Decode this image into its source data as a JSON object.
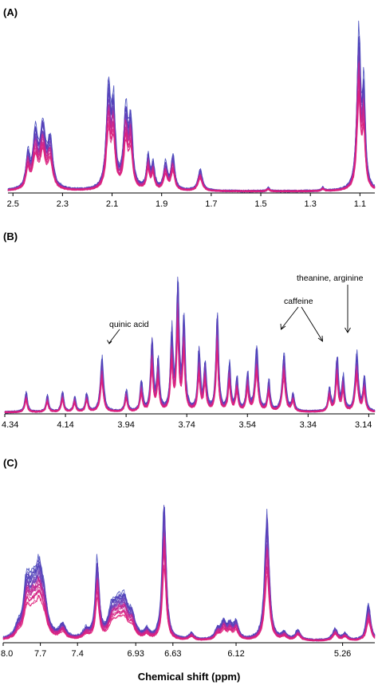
{
  "chart_data": [
    {
      "type": "line",
      "panel": "(A)",
      "xlabel": "",
      "x_reversed": true,
      "xlim": [
        2.52,
        1.04
      ],
      "x_ticks": [
        2.5,
        2.3,
        2.1,
        1.9,
        1.7,
        1.5,
        1.3,
        1.1
      ],
      "x_tick_labels": [
        "2.5",
        "2.3",
        "2.1",
        "1.9",
        "1.7",
        "1.5",
        "1.3",
        "1.1"
      ],
      "n_spectra": 24,
      "colors": [
        "#3a3fb8",
        "#e0207a"
      ],
      "peaks": [
        {
          "ppm": 2.44,
          "height": 0.2,
          "width": 0.006
        },
        {
          "ppm": 2.41,
          "height": 0.32,
          "width": 0.008
        },
        {
          "ppm": 2.38,
          "height": 0.36,
          "width": 0.009
        },
        {
          "ppm": 2.35,
          "height": 0.28,
          "width": 0.008
        },
        {
          "ppm": 2.115,
          "height": 0.58,
          "width": 0.007
        },
        {
          "ppm": 2.095,
          "height": 0.46,
          "width": 0.006
        },
        {
          "ppm": 2.045,
          "height": 0.46,
          "width": 0.007
        },
        {
          "ppm": 2.025,
          "height": 0.38,
          "width": 0.006
        },
        {
          "ppm": 1.955,
          "height": 0.2,
          "width": 0.005
        },
        {
          "ppm": 1.935,
          "height": 0.15,
          "width": 0.005
        },
        {
          "ppm": 1.885,
          "height": 0.16,
          "width": 0.006
        },
        {
          "ppm": 1.855,
          "height": 0.2,
          "width": 0.006
        },
        {
          "ppm": 1.745,
          "height": 0.13,
          "width": 0.007
        },
        {
          "ppm": 1.47,
          "height": 0.02,
          "width": 0.004
        },
        {
          "ppm": 1.25,
          "height": 0.02,
          "width": 0.004
        },
        {
          "ppm": 1.105,
          "height": 0.92,
          "width": 0.006
        },
        {
          "ppm": 1.085,
          "height": 0.55,
          "width": 0.005
        }
      ],
      "annotations": []
    },
    {
      "type": "line",
      "panel": "(B)",
      "xlabel": "",
      "x_reversed": true,
      "xlim": [
        4.34,
        3.12
      ],
      "x_ticks": [
        4.34,
        4.14,
        3.94,
        3.74,
        3.54,
        3.34,
        3.14
      ],
      "x_tick_labels": [
        "4.34",
        "4.14",
        "3.94",
        "3.74",
        "3.54",
        "3.34",
        "3.14"
      ],
      "n_spectra": 24,
      "colors": [
        "#3a3fb8",
        "#e0207a"
      ],
      "peaks": [
        {
          "ppm": 4.27,
          "height": 0.12,
          "width": 0.004
        },
        {
          "ppm": 4.2,
          "height": 0.1,
          "width": 0.004
        },
        {
          "ppm": 4.15,
          "height": 0.12,
          "width": 0.004
        },
        {
          "ppm": 4.11,
          "height": 0.09,
          "width": 0.004
        },
        {
          "ppm": 4.07,
          "height": 0.11,
          "width": 0.004
        },
        {
          "ppm": 4.02,
          "height": 0.32,
          "width": 0.005
        },
        {
          "ppm": 3.94,
          "height": 0.13,
          "width": 0.004
        },
        {
          "ppm": 3.89,
          "height": 0.18,
          "width": 0.004
        },
        {
          "ppm": 3.855,
          "height": 0.42,
          "width": 0.004
        },
        {
          "ppm": 3.835,
          "height": 0.3,
          "width": 0.004
        },
        {
          "ppm": 3.79,
          "height": 0.45,
          "width": 0.004
        },
        {
          "ppm": 3.77,
          "height": 0.75,
          "width": 0.004
        },
        {
          "ppm": 3.75,
          "height": 0.55,
          "width": 0.004
        },
        {
          "ppm": 3.7,
          "height": 0.35,
          "width": 0.004
        },
        {
          "ppm": 3.68,
          "height": 0.28,
          "width": 0.004
        },
        {
          "ppm": 3.64,
          "height": 0.58,
          "width": 0.004
        },
        {
          "ppm": 3.6,
          "height": 0.28,
          "width": 0.004
        },
        {
          "ppm": 3.575,
          "height": 0.2,
          "width": 0.004
        },
        {
          "ppm": 3.54,
          "height": 0.22,
          "width": 0.004
        },
        {
          "ppm": 3.51,
          "height": 0.38,
          "width": 0.005
        },
        {
          "ppm": 3.47,
          "height": 0.18,
          "width": 0.004
        },
        {
          "ppm": 3.42,
          "height": 0.35,
          "width": 0.005
        },
        {
          "ppm": 3.39,
          "height": 0.1,
          "width": 0.004
        },
        {
          "ppm": 3.27,
          "height": 0.14,
          "width": 0.004
        },
        {
          "ppm": 3.245,
          "height": 0.33,
          "width": 0.004
        },
        {
          "ppm": 3.225,
          "height": 0.2,
          "width": 0.004
        },
        {
          "ppm": 3.18,
          "height": 0.34,
          "width": 0.005
        },
        {
          "ppm": 3.155,
          "height": 0.2,
          "width": 0.004
        }
      ],
      "annotations": [
        {
          "text": "quinic acid",
          "ppm": 4.02
        },
        {
          "text": "caffeine",
          "ppm": [
            3.42,
            3.245
          ]
        },
        {
          "text": "theanine, arginine",
          "ppm": 3.18
        }
      ]
    },
    {
      "type": "line",
      "panel": "(C)",
      "xlabel": "Chemical shift (ppm)",
      "x_reversed": true,
      "xlim": [
        8.0,
        5.0
      ],
      "x_ticks": [
        8.0,
        7.7,
        7.4,
        6.93,
        6.63,
        6.12,
        5.26
      ],
      "x_tick_labels": [
        "8.0",
        "7.7",
        "7.4",
        "6.93",
        "6.63",
        "6.12",
        "5.26"
      ],
      "n_spectra": 24,
      "colors": [
        "#3a3fb8",
        "#e0207a"
      ],
      "peaks": [
        {
          "ppm": 7.88,
          "height": 0.05,
          "width": 0.008
        },
        {
          "ppm": 7.81,
          "height": 0.3,
          "width": 0.01
        },
        {
          "ppm": 7.76,
          "height": 0.22,
          "width": 0.012
        },
        {
          "ppm": 7.71,
          "height": 0.34,
          "width": 0.012
        },
        {
          "ppm": 7.67,
          "height": 0.16,
          "width": 0.01
        },
        {
          "ppm": 7.52,
          "height": 0.08,
          "width": 0.01
        },
        {
          "ppm": 7.33,
          "height": 0.05,
          "width": 0.01
        },
        {
          "ppm": 7.24,
          "height": 0.46,
          "width": 0.006
        },
        {
          "ppm": 7.12,
          "height": 0.16,
          "width": 0.012
        },
        {
          "ppm": 7.07,
          "height": 0.15,
          "width": 0.012
        },
        {
          "ppm": 7.02,
          "height": 0.19,
          "width": 0.012
        },
        {
          "ppm": 6.96,
          "height": 0.12,
          "width": 0.01
        },
        {
          "ppm": 6.84,
          "height": 0.05,
          "width": 0.008
        },
        {
          "ppm": 6.7,
          "height": 0.84,
          "width": 0.006
        },
        {
          "ppm": 6.48,
          "height": 0.04,
          "width": 0.008
        },
        {
          "ppm": 6.27,
          "height": 0.06,
          "width": 0.008
        },
        {
          "ppm": 6.22,
          "height": 0.1,
          "width": 0.008
        },
        {
          "ppm": 6.17,
          "height": 0.08,
          "width": 0.008
        },
        {
          "ppm": 6.12,
          "height": 0.1,
          "width": 0.008
        },
        {
          "ppm": 5.87,
          "height": 0.76,
          "width": 0.007
        },
        {
          "ppm": 5.73,
          "height": 0.04,
          "width": 0.008
        },
        {
          "ppm": 5.62,
          "height": 0.06,
          "width": 0.008
        },
        {
          "ppm": 5.32,
          "height": 0.07,
          "width": 0.008
        },
        {
          "ppm": 5.24,
          "height": 0.04,
          "width": 0.008
        },
        {
          "ppm": 5.05,
          "height": 0.22,
          "width": 0.007
        }
      ],
      "annotations": []
    }
  ]
}
